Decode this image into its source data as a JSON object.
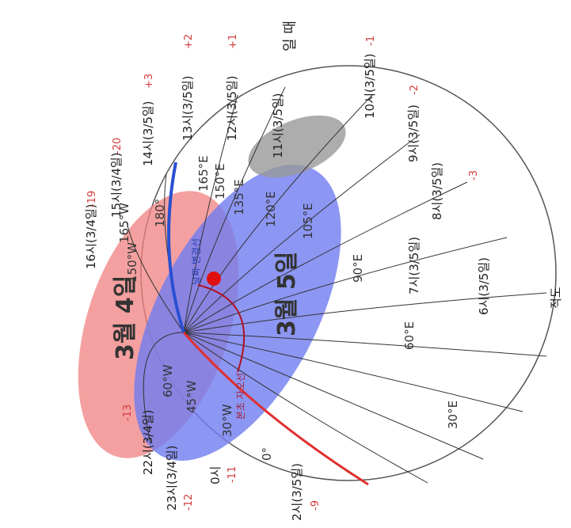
{
  "header": "일 때",
  "times": [
    {
      "label": "11시(3/5일)"
    },
    {
      "label": "12시(3/5일)",
      "offset": "+1"
    },
    {
      "label": "13시(3/5일)",
      "offset": "+2"
    },
    {
      "label": "14시(3/5일)",
      "offset": "+3"
    },
    {
      "label": "15시(3/4일)",
      "offset": "-20"
    },
    {
      "label": "16시(3/4일)",
      "offset": "-19"
    },
    {
      "label": "10시(3/5일)",
      "offset": "-1"
    },
    {
      "label": "9시(3/5일)",
      "offset": "-2"
    },
    {
      "label": "8시(3/5일)",
      "offset": "-3"
    },
    {
      "label": "7시(3/5일)"
    },
    {
      "label": "6시(3/5일)"
    },
    {
      "label": "22시(3/4일)",
      "offset": "-13"
    },
    {
      "label": "23시(3/4일)",
      "offset": "-12"
    },
    {
      "label": "0시",
      "offset": "-11"
    },
    {
      "label": "2시(3/5일)",
      "offset": "-9"
    }
  ],
  "dates": [
    "3월 4일",
    "3월 5일"
  ],
  "longitudes": [
    "165°E",
    "150°E",
    "135°E",
    "120°E",
    "105°E",
    "90°E",
    "60°E",
    "30°E",
    "0°",
    "30°W",
    "45°W",
    "60°W",
    "150°W",
    "165°W",
    "180°"
  ],
  "equator": "적도",
  "lines": [
    "날짜 변경선",
    "본초 자오선"
  ]
}
